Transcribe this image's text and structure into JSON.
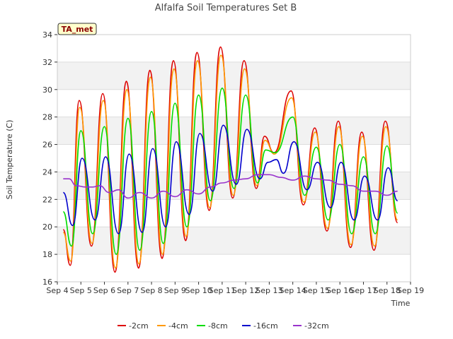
{
  "chart_data": {
    "type": "line",
    "title": "Alfalfa Soil Temperatures Set B",
    "xlabel": "Time",
    "ylabel": "Soil Temperature (C)",
    "badge": "TA_met",
    "xlim": [
      4,
      19
    ],
    "ylim": [
      16,
      34
    ],
    "yticks": [
      16,
      18,
      20,
      22,
      24,
      26,
      28,
      30,
      32,
      34
    ],
    "xticks": [
      4,
      5,
      6,
      7,
      8,
      9,
      10,
      11,
      12,
      13,
      14,
      15,
      16,
      17,
      18,
      19
    ],
    "xtick_labels": [
      "Sep 4",
      "Sep 5",
      "Sep 6",
      "Sep 7",
      "Sep 8",
      "Sep 9",
      "Sep 10",
      "Sep 11",
      "Sep 12",
      "Sep 13",
      "Sep 14",
      "Sep 15",
      "Sep 16",
      "Sep 17",
      "Sep 18",
      "Sep 19"
    ],
    "grid": "horizontal bands",
    "legend_position": "bottom",
    "series": [
      {
        "name": "-2cm",
        "color": "#dd0000",
        "x": [
          4.25,
          4.55,
          4.93,
          5.45,
          5.93,
          6.45,
          6.93,
          7.45,
          7.93,
          8.45,
          8.93,
          9.45,
          9.93,
          10.45,
          10.93,
          11.45,
          11.93,
          12.45,
          12.8,
          13.2,
          13.93,
          14.45,
          14.93,
          15.45,
          15.93,
          16.45,
          16.93,
          17.45,
          17.93,
          18.45
        ],
        "y": [
          19.8,
          17.2,
          29.2,
          18.6,
          29.7,
          16.7,
          30.6,
          17.0,
          31.4,
          17.7,
          32.1,
          19.0,
          32.7,
          21.2,
          33.1,
          22.1,
          32.1,
          22.8,
          26.6,
          25.4,
          29.9,
          21.6,
          27.2,
          19.7,
          27.7,
          18.5,
          26.9,
          18.3,
          27.7,
          20.3
        ]
      },
      {
        "name": "-4cm",
        "color": "#ff9900",
        "x": [
          4.25,
          4.57,
          4.95,
          5.47,
          5.95,
          6.47,
          6.95,
          7.47,
          7.95,
          8.47,
          8.95,
          9.47,
          9.95,
          10.47,
          10.95,
          11.47,
          11.95,
          12.47,
          12.82,
          13.22,
          13.95,
          14.47,
          14.95,
          15.47,
          15.95,
          16.47,
          16.95,
          17.47,
          17.95,
          18.45
        ],
        "y": [
          19.6,
          17.5,
          28.7,
          18.8,
          29.2,
          17.0,
          30.0,
          17.3,
          30.9,
          18.0,
          31.5,
          19.3,
          32.1,
          21.4,
          32.5,
          22.3,
          31.5,
          23.0,
          26.3,
          25.3,
          29.4,
          21.8,
          26.9,
          19.9,
          27.3,
          18.7,
          26.6,
          18.6,
          27.3,
          20.5
        ]
      },
      {
        "name": "-8cm",
        "color": "#00dd00",
        "x": [
          4.25,
          4.6,
          5.0,
          5.5,
          6.0,
          6.5,
          7.0,
          7.5,
          8.0,
          8.5,
          9.0,
          9.5,
          10.0,
          10.5,
          11.0,
          11.5,
          12.0,
          12.5,
          12.85,
          13.25,
          14.0,
          14.5,
          15.0,
          15.5,
          16.0,
          16.5,
          17.0,
          17.5,
          18.0,
          18.45
        ],
        "y": [
          21.1,
          18.6,
          27.0,
          19.5,
          27.3,
          18.0,
          27.9,
          18.3,
          28.4,
          18.8,
          29.0,
          20.0,
          29.6,
          21.9,
          30.1,
          22.8,
          29.6,
          23.2,
          25.6,
          25.4,
          28.0,
          22.3,
          25.8,
          20.5,
          26.0,
          19.5,
          25.1,
          19.5,
          25.9,
          21.0
        ]
      },
      {
        "name": "-16cm",
        "color": "#0000cc",
        "x": [
          4.25,
          4.65,
          5.05,
          5.6,
          6.05,
          6.6,
          7.05,
          7.6,
          8.05,
          8.6,
          9.05,
          9.6,
          10.05,
          10.6,
          11.05,
          11.6,
          12.05,
          12.6,
          12.95,
          13.3,
          13.6,
          14.05,
          14.6,
          15.05,
          15.6,
          16.05,
          16.6,
          17.05,
          17.6,
          18.05,
          18.45
        ],
        "y": [
          22.5,
          20.1,
          25.0,
          20.5,
          25.1,
          19.5,
          25.3,
          19.6,
          25.7,
          20.0,
          26.2,
          20.9,
          26.8,
          22.6,
          27.4,
          23.1,
          27.1,
          23.5,
          24.7,
          24.9,
          23.9,
          26.2,
          22.7,
          24.7,
          21.4,
          24.7,
          20.5,
          23.7,
          20.5,
          24.3,
          21.9
        ]
      },
      {
        "name": "-32cm",
        "color": "#9933cc",
        "x": [
          4.25,
          4.5,
          4.8,
          5.2,
          5.5,
          5.8,
          6.2,
          6.6,
          7.0,
          7.5,
          8.0,
          8.5,
          9.0,
          9.5,
          10.0,
          10.5,
          11.0,
          11.5,
          12.0,
          12.5,
          13.0,
          13.5,
          14.0,
          14.5,
          15.0,
          15.5,
          16.0,
          16.5,
          17.0,
          17.5,
          18.0,
          18.45
        ],
        "y": [
          23.5,
          23.5,
          23.0,
          22.9,
          22.9,
          23.0,
          22.5,
          22.7,
          22.1,
          22.5,
          22.1,
          22.6,
          22.2,
          22.7,
          22.4,
          22.9,
          23.2,
          23.4,
          23.5,
          23.8,
          23.8,
          23.6,
          23.4,
          23.7,
          23.5,
          23.4,
          23.1,
          23.0,
          22.6,
          22.6,
          22.3,
          22.6
        ]
      }
    ]
  }
}
